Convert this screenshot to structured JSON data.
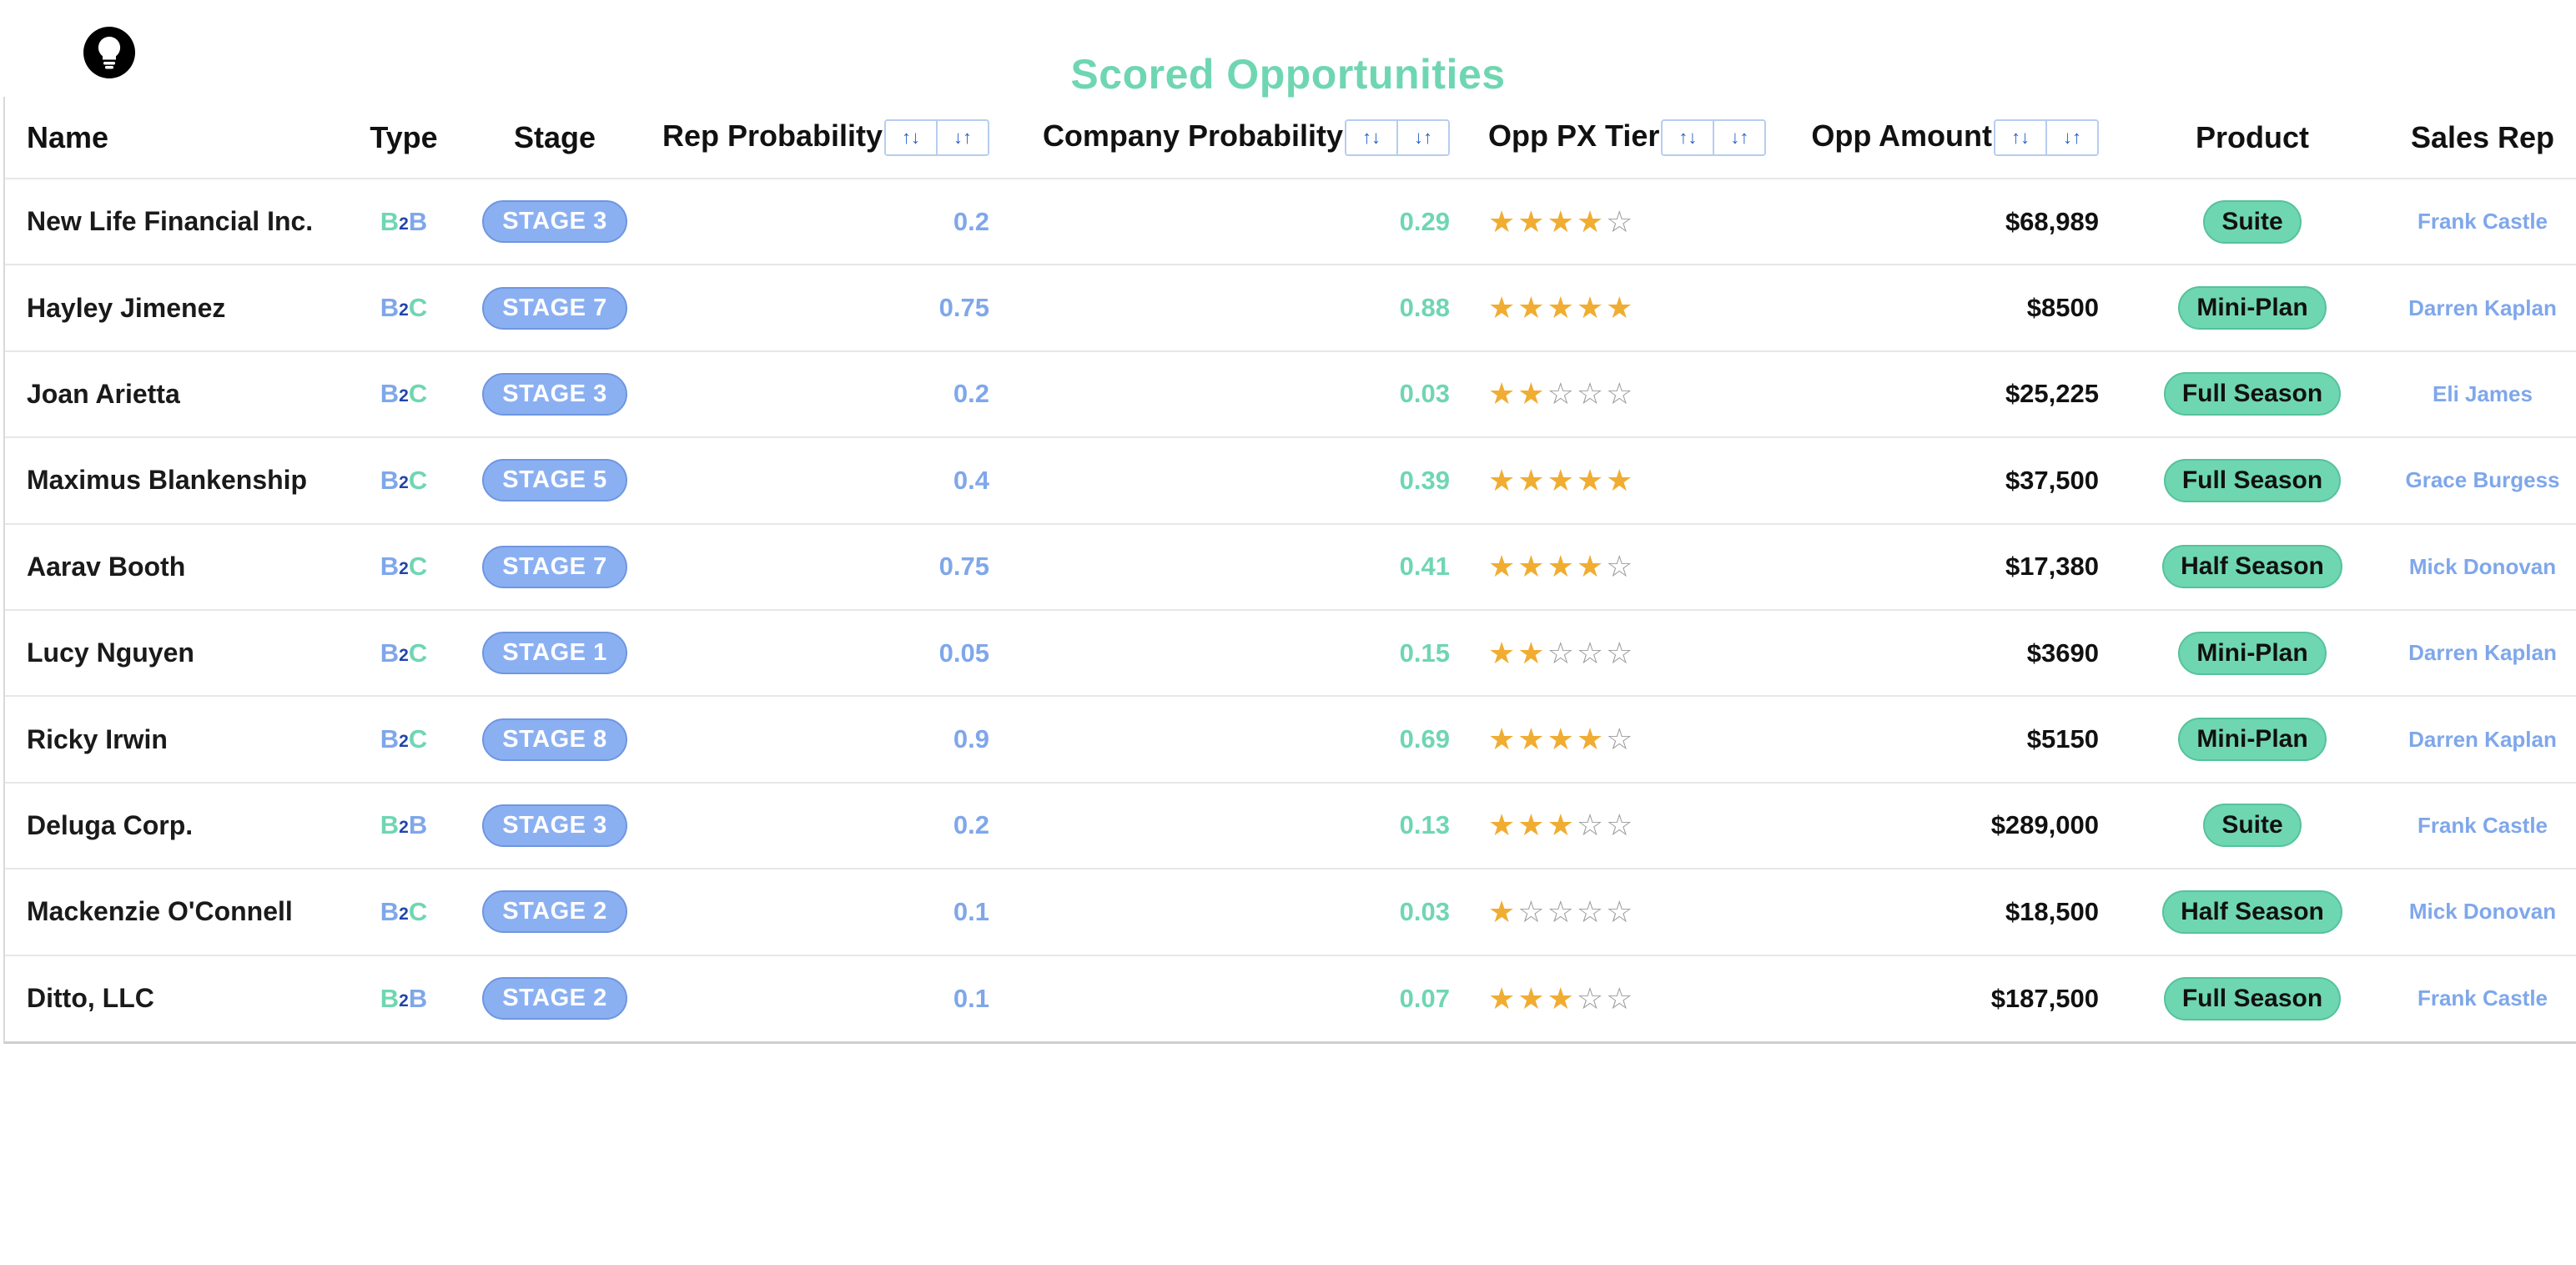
{
  "page": {
    "title": "Scored Opportunities"
  },
  "app": {
    "icon": "lightbulb-icon"
  },
  "colors": {
    "accent_green": "#6fd6b2",
    "accent_blue": "#7fa7ea",
    "stage_pill": "#8bb0f2",
    "star_filled": "#f0ad32",
    "star_empty": "#9a9a9a"
  },
  "columns": {
    "name": "Name",
    "type": "Type",
    "stage": "Stage",
    "rep_probability": "Rep Probability",
    "company_probability": "Company Probability",
    "opp_px_tier": "Opp PX Tier",
    "opp_amount": "Opp Amount",
    "product": "Product",
    "sales_rep": "Sales Rep"
  },
  "sort_controls": {
    "ascending": "↑↓",
    "descending": "↓↑"
  },
  "rows": [
    {
      "name": "New Life Financial Inc.",
      "type": {
        "a": "B",
        "mid": "2",
        "b": "B"
      },
      "stage": "STAGE 3",
      "rep_probability": "0.2",
      "company_probability": "0.29",
      "tier_stars": 4,
      "amount": "$68,989",
      "product": "Suite",
      "sales_rep": "Frank Castle"
    },
    {
      "name": "Hayley Jimenez",
      "type": {
        "a": "B",
        "mid": "2",
        "b": "C"
      },
      "stage": "STAGE 7",
      "rep_probability": "0.75",
      "company_probability": "0.88",
      "tier_stars": 5,
      "amount": "$8500",
      "product": "Mini-Plan",
      "sales_rep": "Darren Kaplan"
    },
    {
      "name": "Joan Arietta",
      "type": {
        "a": "B",
        "mid": "2",
        "b": "C"
      },
      "stage": "STAGE 3",
      "rep_probability": "0.2",
      "company_probability": "0.03",
      "tier_stars": 2,
      "amount": "$25,225",
      "product": "Full Season",
      "sales_rep": "Eli James"
    },
    {
      "name": "Maximus Blankenship",
      "type": {
        "a": "B",
        "mid": "2",
        "b": "C"
      },
      "stage": "STAGE 5",
      "rep_probability": "0.4",
      "company_probability": "0.39",
      "tier_stars": 5,
      "amount": "$37,500",
      "product": "Full Season",
      "sales_rep": "Grace Burgess"
    },
    {
      "name": "Aarav Booth",
      "type": {
        "a": "B",
        "mid": "2",
        "b": "C"
      },
      "stage": "STAGE 7",
      "rep_probability": "0.75",
      "company_probability": "0.41",
      "tier_stars": 4,
      "amount": "$17,380",
      "product": "Half Season",
      "sales_rep": "Mick Donovan"
    },
    {
      "name": "Lucy Nguyen",
      "type": {
        "a": "B",
        "mid": "2",
        "b": "C"
      },
      "stage": "STAGE 1",
      "rep_probability": "0.05",
      "company_probability": "0.15",
      "tier_stars": 2,
      "amount": "$3690",
      "product": "Mini-Plan",
      "sales_rep": "Darren Kaplan"
    },
    {
      "name": "Ricky Irwin",
      "type": {
        "a": "B",
        "mid": "2",
        "b": "C"
      },
      "stage": "STAGE 8",
      "rep_probability": "0.9",
      "company_probability": "0.69",
      "tier_stars": 4,
      "amount": "$5150",
      "product": "Mini-Plan",
      "sales_rep": "Darren Kaplan"
    },
    {
      "name": "Deluga Corp.",
      "type": {
        "a": "B",
        "mid": "2",
        "b": "B"
      },
      "stage": "STAGE 3",
      "rep_probability": "0.2",
      "company_probability": "0.13",
      "tier_stars": 3,
      "amount": "$289,000",
      "product": "Suite",
      "sales_rep": "Frank Castle"
    },
    {
      "name": "Mackenzie O'Connell",
      "type": {
        "a": "B",
        "mid": "2",
        "b": "C"
      },
      "stage": "STAGE 2",
      "rep_probability": "0.1",
      "company_probability": "0.03",
      "tier_stars": 1,
      "amount": "$18,500",
      "product": "Half Season",
      "sales_rep": "Mick Donovan"
    },
    {
      "name": "Ditto, LLC",
      "type": {
        "a": "B",
        "mid": "2",
        "b": "B"
      },
      "stage": "STAGE 2",
      "rep_probability": "0.1",
      "company_probability": "0.07",
      "tier_stars": 3,
      "amount": "$187,500",
      "product": "Full Season",
      "sales_rep": "Frank Castle"
    }
  ]
}
